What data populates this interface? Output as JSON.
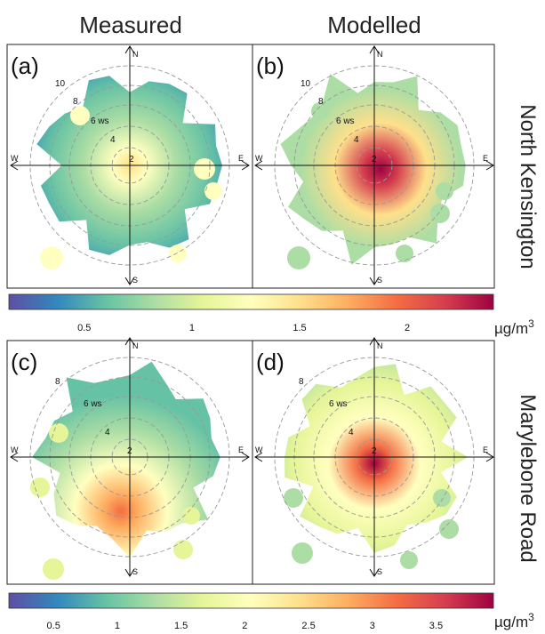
{
  "columns": [
    "Measured",
    "Modelled"
  ],
  "rows": [
    "North Kensington",
    "Marylebone Road"
  ],
  "compass": {
    "N": "N",
    "S": "S",
    "E": "E",
    "W": "W"
  },
  "colormap": [
    "#5e4fa2",
    "#3288bd",
    "#66c2a5",
    "#abdda4",
    "#e6f598",
    "#ffffbf",
    "#fee08b",
    "#fdae61",
    "#f46d43",
    "#d53e4f",
    "#9e0142"
  ],
  "chart_data": [
    {
      "type": "heatmap",
      "panels": [
        {
          "label": "(a)",
          "title": "Measured",
          "ring_labels": [
            "2",
            "4",
            "6 ws",
            "8",
            "10"
          ]
        },
        {
          "label": "(b)",
          "title": "Modelled",
          "ring_labels": [
            "2",
            "4",
            "6 ws",
            "8",
            "10"
          ]
        }
      ],
      "row_label": "North Kensington",
      "colorbar": {
        "ticks": [
          "0.5",
          "1",
          "1.5",
          "2"
        ],
        "tick_values": [
          0.5,
          1,
          1.5,
          2
        ],
        "range": [
          0.15,
          2.4
        ],
        "unit_prefix": "µg/m",
        "unit_exp": "3"
      }
    },
    {
      "type": "heatmap",
      "panels": [
        {
          "label": "(c)",
          "title": "Measured",
          "ring_labels": [
            "2",
            "4",
            "6 ws",
            "8"
          ]
        },
        {
          "label": "(d)",
          "title": "Modelled",
          "ring_labels": [
            "2",
            "4",
            "6 ws",
            "8"
          ]
        }
      ],
      "row_label": "Marylebone Road",
      "colorbar": {
        "ticks": [
          "0.5",
          "1",
          "1.5",
          "2",
          "2.5",
          "3",
          "3.5"
        ],
        "tick_values": [
          0.5,
          1,
          1.5,
          2,
          2.5,
          3,
          3.5
        ],
        "range": [
          0.15,
          3.95
        ],
        "unit_prefix": "µg/m",
        "unit_exp": "3"
      }
    }
  ]
}
